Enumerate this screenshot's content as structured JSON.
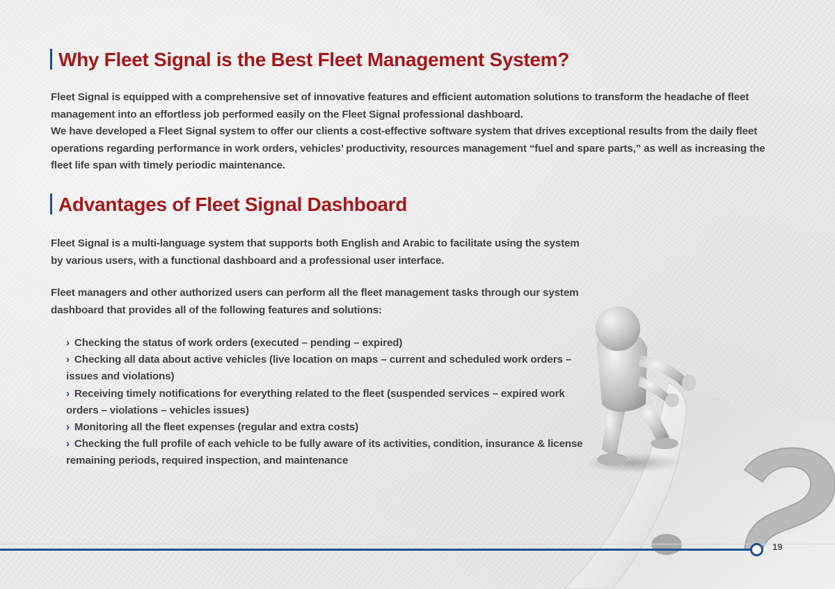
{
  "section1": {
    "title": "Why Fleet Signal is the Best Fleet Management System?",
    "paragraph1": "Fleet Signal is equipped with a comprehensive set of innovative features and efficient automation solutions to transform the headache of fleet management into an effortless job performed easily on the Fleet Signal professional dashboard.",
    "paragraph2": "We have developed a Fleet Signal system to offer our clients a cost-effective software system that drives exceptional results from the daily fleet operations regarding performance in work orders, vehicles’ productivity, resources management “fuel and spare parts,” as well as increasing the fleet life span with timely periodic maintenance."
  },
  "section2": {
    "title": "Advantages of Fleet Signal Dashboard",
    "paragraph1": "Fleet Signal is a multi-language system that supports both English and Arabic to facilitate using the system by various users, with a functional dashboard and a professional user interface.",
    "paragraph2": "Fleet managers and other authorized users can perform all the fleet management tasks through our system dashboard that provides all of the following features and solutions:",
    "bullet_glyph": "›",
    "features": [
      "Checking the status of work orders (executed – pending – expired)",
      "Checking all data about active vehicles (live location on maps – current and scheduled work orders – issues and violations)",
      "Receiving timely notifications for everything related to the fleet (suspended services – expired work orders – violations – vehicles issues)",
      "Monitoring all the fleet expenses (regular and extra costs)",
      "Checking the full profile of each vehicle to be fully aware of its activities, condition, insurance & license remaining periods, required inspection, and maintenance"
    ]
  },
  "footer": {
    "page_number": "19"
  },
  "colors": {
    "heading": "#a3191c",
    "accent": "#1c4f8c",
    "body_text": "#444444"
  },
  "illustration": {
    "icon": "figure-peeling-question-mark-icon"
  }
}
